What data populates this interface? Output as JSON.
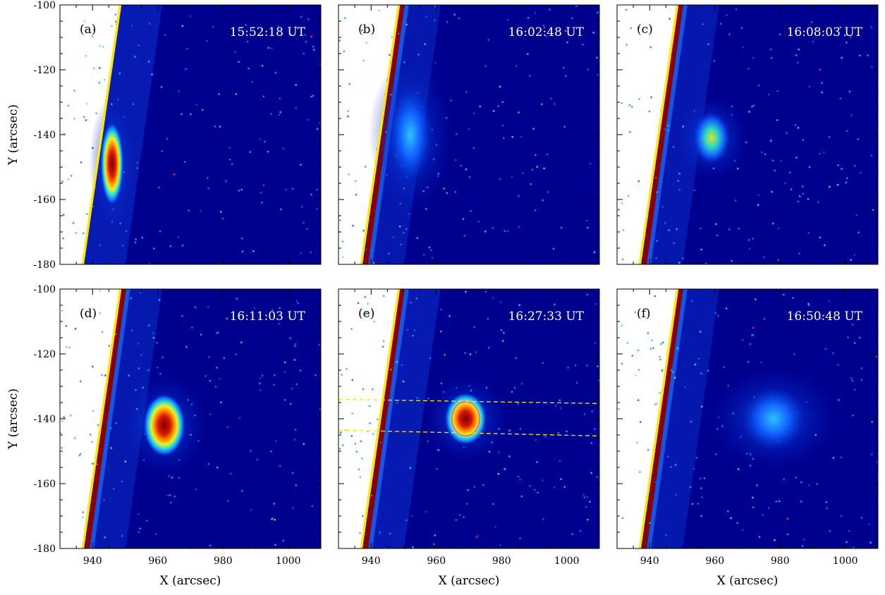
{
  "figure": {
    "panels": [
      {
        "id": "a",
        "label": "(a)",
        "time": "15:52:18 UT",
        "brightness": 0.85,
        "blob": {
          "x": 946,
          "y": -149,
          "rx": 2.2,
          "ry": 8,
          "level": 1.0
        },
        "slit": false
      },
      {
        "id": "b",
        "label": "(b)",
        "time": "16:02:48 UT",
        "brightness": 0.55,
        "blob": {
          "x": 952,
          "y": -140,
          "rx": 4,
          "ry": 9,
          "level": 0.35
        },
        "slit": false
      },
      {
        "id": "c",
        "label": "(c)",
        "time": "16:08:03 UT",
        "brightness": 0.6,
        "blob": {
          "x": 959,
          "y": -141,
          "rx": 3.5,
          "ry": 5,
          "level": 0.75
        },
        "slit": false
      },
      {
        "id": "d",
        "label": "(d)",
        "time": "16:11:03 UT",
        "brightness": 0.7,
        "blob": {
          "x": 962,
          "y": -142,
          "rx": 4,
          "ry": 6,
          "level": 1.0
        },
        "slit": false
      },
      {
        "id": "e",
        "label": "(e)",
        "time": "16:27:33 UT",
        "brightness": 0.8,
        "blob": {
          "x": 969,
          "y": -140,
          "rx": 4,
          "ry": 5,
          "level": 1.0
        },
        "slit": true
      },
      {
        "id": "f",
        "label": "(f)",
        "time": "16:50:48 UT",
        "brightness": 0.65,
        "blob": {
          "x": 978,
          "y": -140,
          "rx": 6,
          "ry": 6,
          "level": 0.35
        },
        "slit": false
      }
    ],
    "x_axis": {
      "label": "X (arcsec)",
      "range": [
        930,
        1010
      ],
      "ticks": [
        940,
        960,
        980,
        1000
      ]
    },
    "y_axis": {
      "label": "Y (arcsec)",
      "range": [
        -180,
        -100
      ],
      "ticks": [
        -100,
        -120,
        -140,
        -160,
        -180
      ]
    },
    "colors": {
      "background": "#00008f",
      "limb": "#ffe800",
      "limb_band": "#8b0000",
      "slit": "#ffe800",
      "contour": "#ff40c0"
    },
    "limb_line": {
      "top": [
        948.5,
        -100
      ],
      "bottom": [
        937,
        -180
      ]
    },
    "slit_lines": [
      {
        "start": [
          930,
          -134
        ],
        "end": [
          1010,
          -135.3
        ]
      },
      {
        "start": [
          930,
          -143.5
        ],
        "end": [
          1010,
          -145.3
        ]
      }
    ]
  }
}
